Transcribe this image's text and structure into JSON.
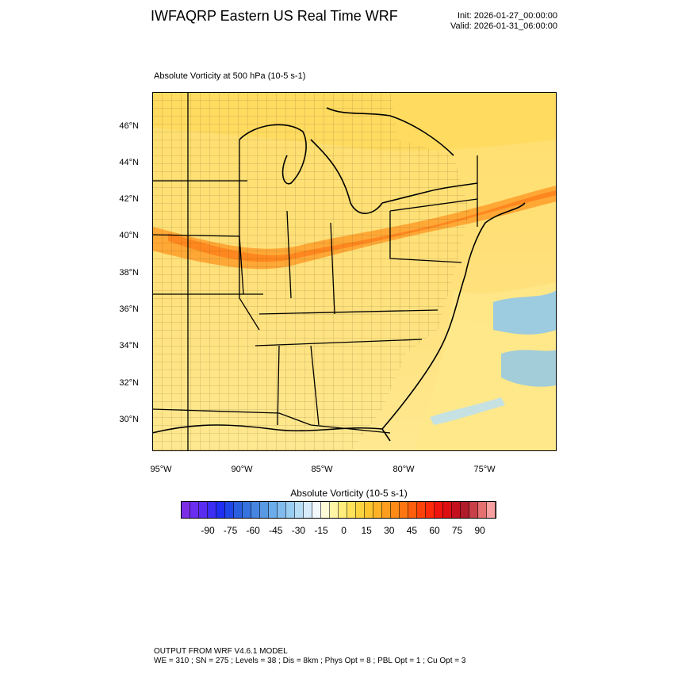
{
  "title": "IWFAQRP Eastern US Real Time WRF",
  "init_text": "Init: 2026-01-27_00:00:00",
  "valid_text": "Valid: 2026-01-31_06:00:00",
  "field_label": "Absolute Vorticity at 500 hPa   (10-5 s-1)",
  "map": {
    "lat_ticks": [
      "46°N",
      "44°N",
      "42°N",
      "40°N",
      "38°N",
      "36°N",
      "34°N",
      "32°N",
      "30°N"
    ],
    "lon_ticks": [
      "95°W",
      "90°W",
      "85°W",
      "80°W",
      "75°W"
    ]
  },
  "colorbar": {
    "title": "Absolute Vorticity  (10-5 s-1)",
    "tick_labels": [
      "-90",
      "-75",
      "-60",
      "-45",
      "-30",
      "-15",
      "0",
      "15",
      "30",
      "45",
      "60",
      "75",
      "90"
    ],
    "colors": [
      "#7b2ee6",
      "#6b2df0",
      "#5a2cf2",
      "#3b2df4",
      "#1e2ff2",
      "#1f46e8",
      "#2a5fe0",
      "#3673de",
      "#4686e0",
      "#5a9ae4",
      "#6cacea",
      "#82bcee",
      "#9acdf2",
      "#b8def6",
      "#d6ecfa",
      "#f2f8fc",
      "#fffbd6",
      "#fff4a6",
      "#ffec7a",
      "#ffe15a",
      "#ffd43e",
      "#ffc530",
      "#ffb226",
      "#ff9e1e",
      "#ff8a16",
      "#ff7610",
      "#ff5e0c",
      "#ff420a",
      "#ff2a0a",
      "#f0140e",
      "#dc0e12",
      "#c4101c",
      "#b01c2a",
      "#c84048",
      "#e47070",
      "#f8a0a0"
    ]
  },
  "footer": {
    "line1": "OUTPUT FROM WRF V4.6.1 MODEL",
    "line2": "WE = 310 ; SN = 275 ; Levels = 38 ; Dis = 8km ; Phys Opt = 8 ; PBL Opt = 1 ; Cu Opt = 3"
  }
}
